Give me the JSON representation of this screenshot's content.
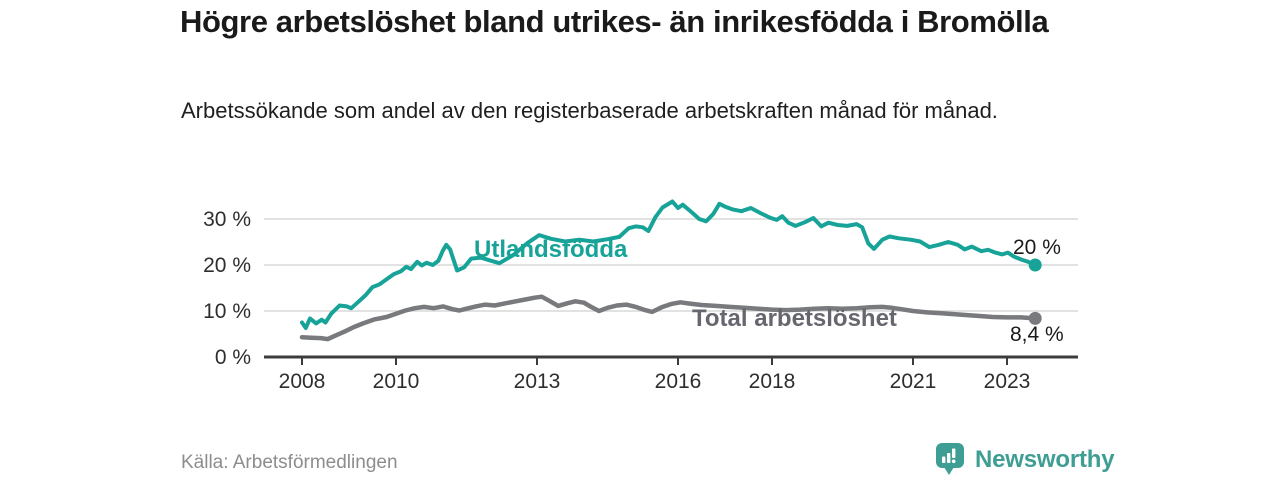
{
  "title": "Högre arbetslöshet bland utrikes- än inrikesfödda i Bromölla",
  "subtitle": "Arbetssökande som andel av den registerbaserade arbetskraften månad för månad.",
  "source": "Källa: Arbetsförmedlingen",
  "branding": {
    "name": "Newsworthy",
    "icon": "bar-chart-speech-bubble",
    "color": "#3f9e94"
  },
  "colors": {
    "foreign_line": "#17a398",
    "total_line": "#797a7e",
    "total_label": "#66676e",
    "grid": "#d8d8d8",
    "axis": "#3c3c3c",
    "tick_text": "#2e2e2e",
    "title_text": "#1a1a1a",
    "muted_text": "#8d8d8d"
  },
  "chart_data": {
    "type": "line",
    "title": "Högre arbetslöshet bland utrikes- än inrikesfödda i Bromölla",
    "xlabel": "",
    "ylabel": "",
    "unit": "%",
    "grid": "horizontal",
    "legend_position": "inline-labels",
    "xlim": [
      2007.8,
      2024.6
    ],
    "ylim": [
      0,
      34
    ],
    "x_ticks": [
      2008,
      2010,
      2013,
      2016,
      2018,
      2021,
      2023
    ],
    "y_ticks": [
      {
        "value": 0,
        "label": "0 %"
      },
      {
        "value": 10,
        "label": "10 %"
      },
      {
        "value": 20,
        "label": "20 %"
      },
      {
        "value": 30,
        "label": "30 %"
      }
    ],
    "series": [
      {
        "name": "Utlandsfödda",
        "color": "#17a398",
        "end_value": 20,
        "end_label": "20 %",
        "points": [
          [
            2008.0,
            7.5
          ],
          [
            2008.08,
            6.3
          ],
          [
            2008.17,
            8.4
          ],
          [
            2008.3,
            7.3
          ],
          [
            2008.42,
            8.1
          ],
          [
            2008.5,
            7.5
          ],
          [
            2008.62,
            9.4
          ],
          [
            2008.8,
            11.2
          ],
          [
            2008.95,
            11.0
          ],
          [
            2009.05,
            10.6
          ],
          [
            2009.2,
            12.0
          ],
          [
            2009.35,
            13.4
          ],
          [
            2009.5,
            15.2
          ],
          [
            2009.65,
            15.8
          ],
          [
            2009.8,
            16.9
          ],
          [
            2009.95,
            18.0
          ],
          [
            2010.1,
            18.6
          ],
          [
            2010.22,
            19.6
          ],
          [
            2010.32,
            19.1
          ],
          [
            2010.45,
            20.7
          ],
          [
            2010.55,
            19.9
          ],
          [
            2010.65,
            20.5
          ],
          [
            2010.78,
            20.0
          ],
          [
            2010.9,
            20.9
          ],
          [
            2011.0,
            23.2
          ],
          [
            2011.07,
            24.4
          ],
          [
            2011.15,
            23.4
          ],
          [
            2011.3,
            18.8
          ],
          [
            2011.45,
            19.5
          ],
          [
            2011.6,
            21.4
          ],
          [
            2011.8,
            21.6
          ],
          [
            2012.0,
            21.0
          ],
          [
            2012.2,
            20.4
          ],
          [
            2012.5,
            22.2
          ],
          [
            2012.8,
            24.8
          ],
          [
            2013.05,
            26.5
          ],
          [
            2013.3,
            25.7
          ],
          [
            2013.6,
            25.1
          ],
          [
            2013.9,
            25.5
          ],
          [
            2014.2,
            25.1
          ],
          [
            2014.5,
            25.6
          ],
          [
            2014.75,
            26.1
          ],
          [
            2014.95,
            28.0
          ],
          [
            2015.1,
            28.4
          ],
          [
            2015.25,
            28.2
          ],
          [
            2015.37,
            27.4
          ],
          [
            2015.52,
            30.4
          ],
          [
            2015.67,
            32.5
          ],
          [
            2015.88,
            33.8
          ],
          [
            2016.0,
            32.4
          ],
          [
            2016.1,
            33.1
          ],
          [
            2016.3,
            31.4
          ],
          [
            2016.45,
            30.0
          ],
          [
            2016.6,
            29.5
          ],
          [
            2016.75,
            31.1
          ],
          [
            2016.88,
            33.3
          ],
          [
            2017.0,
            32.7
          ],
          [
            2017.15,
            32.1
          ],
          [
            2017.35,
            31.7
          ],
          [
            2017.55,
            32.4
          ],
          [
            2017.75,
            31.3
          ],
          [
            2017.95,
            30.3
          ],
          [
            2018.1,
            29.8
          ],
          [
            2018.22,
            30.6
          ],
          [
            2018.35,
            29.2
          ],
          [
            2018.5,
            28.5
          ],
          [
            2018.7,
            29.3
          ],
          [
            2018.88,
            30.2
          ],
          [
            2019.05,
            28.4
          ],
          [
            2019.2,
            29.2
          ],
          [
            2019.4,
            28.7
          ],
          [
            2019.6,
            28.5
          ],
          [
            2019.8,
            28.9
          ],
          [
            2019.92,
            28.2
          ],
          [
            2020.05,
            24.7
          ],
          [
            2020.17,
            23.5
          ],
          [
            2020.35,
            25.5
          ],
          [
            2020.5,
            26.2
          ],
          [
            2020.7,
            25.8
          ],
          [
            2020.95,
            25.5
          ],
          [
            2021.15,
            25.1
          ],
          [
            2021.35,
            23.9
          ],
          [
            2021.55,
            24.4
          ],
          [
            2021.75,
            25.0
          ],
          [
            2021.95,
            24.4
          ],
          [
            2022.1,
            23.4
          ],
          [
            2022.25,
            24.0
          ],
          [
            2022.45,
            23.0
          ],
          [
            2022.6,
            23.3
          ],
          [
            2022.75,
            22.7
          ],
          [
            2022.9,
            22.3
          ],
          [
            2023.02,
            22.7
          ],
          [
            2023.15,
            21.8
          ],
          [
            2023.3,
            21.2
          ],
          [
            2023.45,
            20.7
          ],
          [
            2023.6,
            20.0
          ]
        ]
      },
      {
        "name": "Total arbetslöshet",
        "color": "#797a7e",
        "end_value": 8.4,
        "end_label": "8,4 %",
        "points": [
          [
            2008.0,
            4.3
          ],
          [
            2008.2,
            4.2
          ],
          [
            2008.4,
            4.1
          ],
          [
            2008.55,
            3.9
          ],
          [
            2008.7,
            4.6
          ],
          [
            2008.9,
            5.5
          ],
          [
            2009.1,
            6.5
          ],
          [
            2009.3,
            7.3
          ],
          [
            2009.55,
            8.2
          ],
          [
            2009.8,
            8.7
          ],
          [
            2010.0,
            9.4
          ],
          [
            2010.2,
            10.1
          ],
          [
            2010.4,
            10.6
          ],
          [
            2010.6,
            10.9
          ],
          [
            2010.8,
            10.6
          ],
          [
            2011.0,
            11.0
          ],
          [
            2011.2,
            10.4
          ],
          [
            2011.35,
            10.1
          ],
          [
            2011.5,
            10.5
          ],
          [
            2011.7,
            11.0
          ],
          [
            2011.9,
            11.4
          ],
          [
            2012.1,
            11.2
          ],
          [
            2012.3,
            11.6
          ],
          [
            2012.55,
            12.1
          ],
          [
            2012.75,
            12.5
          ],
          [
            2012.95,
            12.9
          ],
          [
            2013.1,
            13.1
          ],
          [
            2013.28,
            12.1
          ],
          [
            2013.45,
            11.1
          ],
          [
            2013.65,
            11.7
          ],
          [
            2013.82,
            12.1
          ],
          [
            2014.0,
            11.8
          ],
          [
            2014.15,
            10.9
          ],
          [
            2014.32,
            10.0
          ],
          [
            2014.5,
            10.7
          ],
          [
            2014.7,
            11.2
          ],
          [
            2014.9,
            11.4
          ],
          [
            2015.1,
            10.9
          ],
          [
            2015.3,
            10.2
          ],
          [
            2015.45,
            9.8
          ],
          [
            2015.65,
            10.8
          ],
          [
            2015.85,
            11.5
          ],
          [
            2016.05,
            11.9
          ],
          [
            2016.25,
            11.6
          ],
          [
            2016.5,
            11.3
          ],
          [
            2016.8,
            11.1
          ],
          [
            2017.1,
            10.9
          ],
          [
            2017.4,
            10.7
          ],
          [
            2017.7,
            10.5
          ],
          [
            2018.0,
            10.3
          ],
          [
            2018.3,
            10.2
          ],
          [
            2018.6,
            10.3
          ],
          [
            2018.9,
            10.5
          ],
          [
            2019.2,
            10.6
          ],
          [
            2019.5,
            10.5
          ],
          [
            2019.8,
            10.6
          ],
          [
            2020.1,
            10.8
          ],
          [
            2020.35,
            10.9
          ],
          [
            2020.55,
            10.7
          ],
          [
            2020.75,
            10.4
          ],
          [
            2021.0,
            10.0
          ],
          [
            2021.3,
            9.7
          ],
          [
            2021.6,
            9.5
          ],
          [
            2021.9,
            9.3
          ],
          [
            2022.15,
            9.1
          ],
          [
            2022.45,
            8.9
          ],
          [
            2022.7,
            8.7
          ],
          [
            2023.0,
            8.6
          ],
          [
            2023.3,
            8.6
          ],
          [
            2023.6,
            8.4
          ]
        ]
      }
    ]
  }
}
